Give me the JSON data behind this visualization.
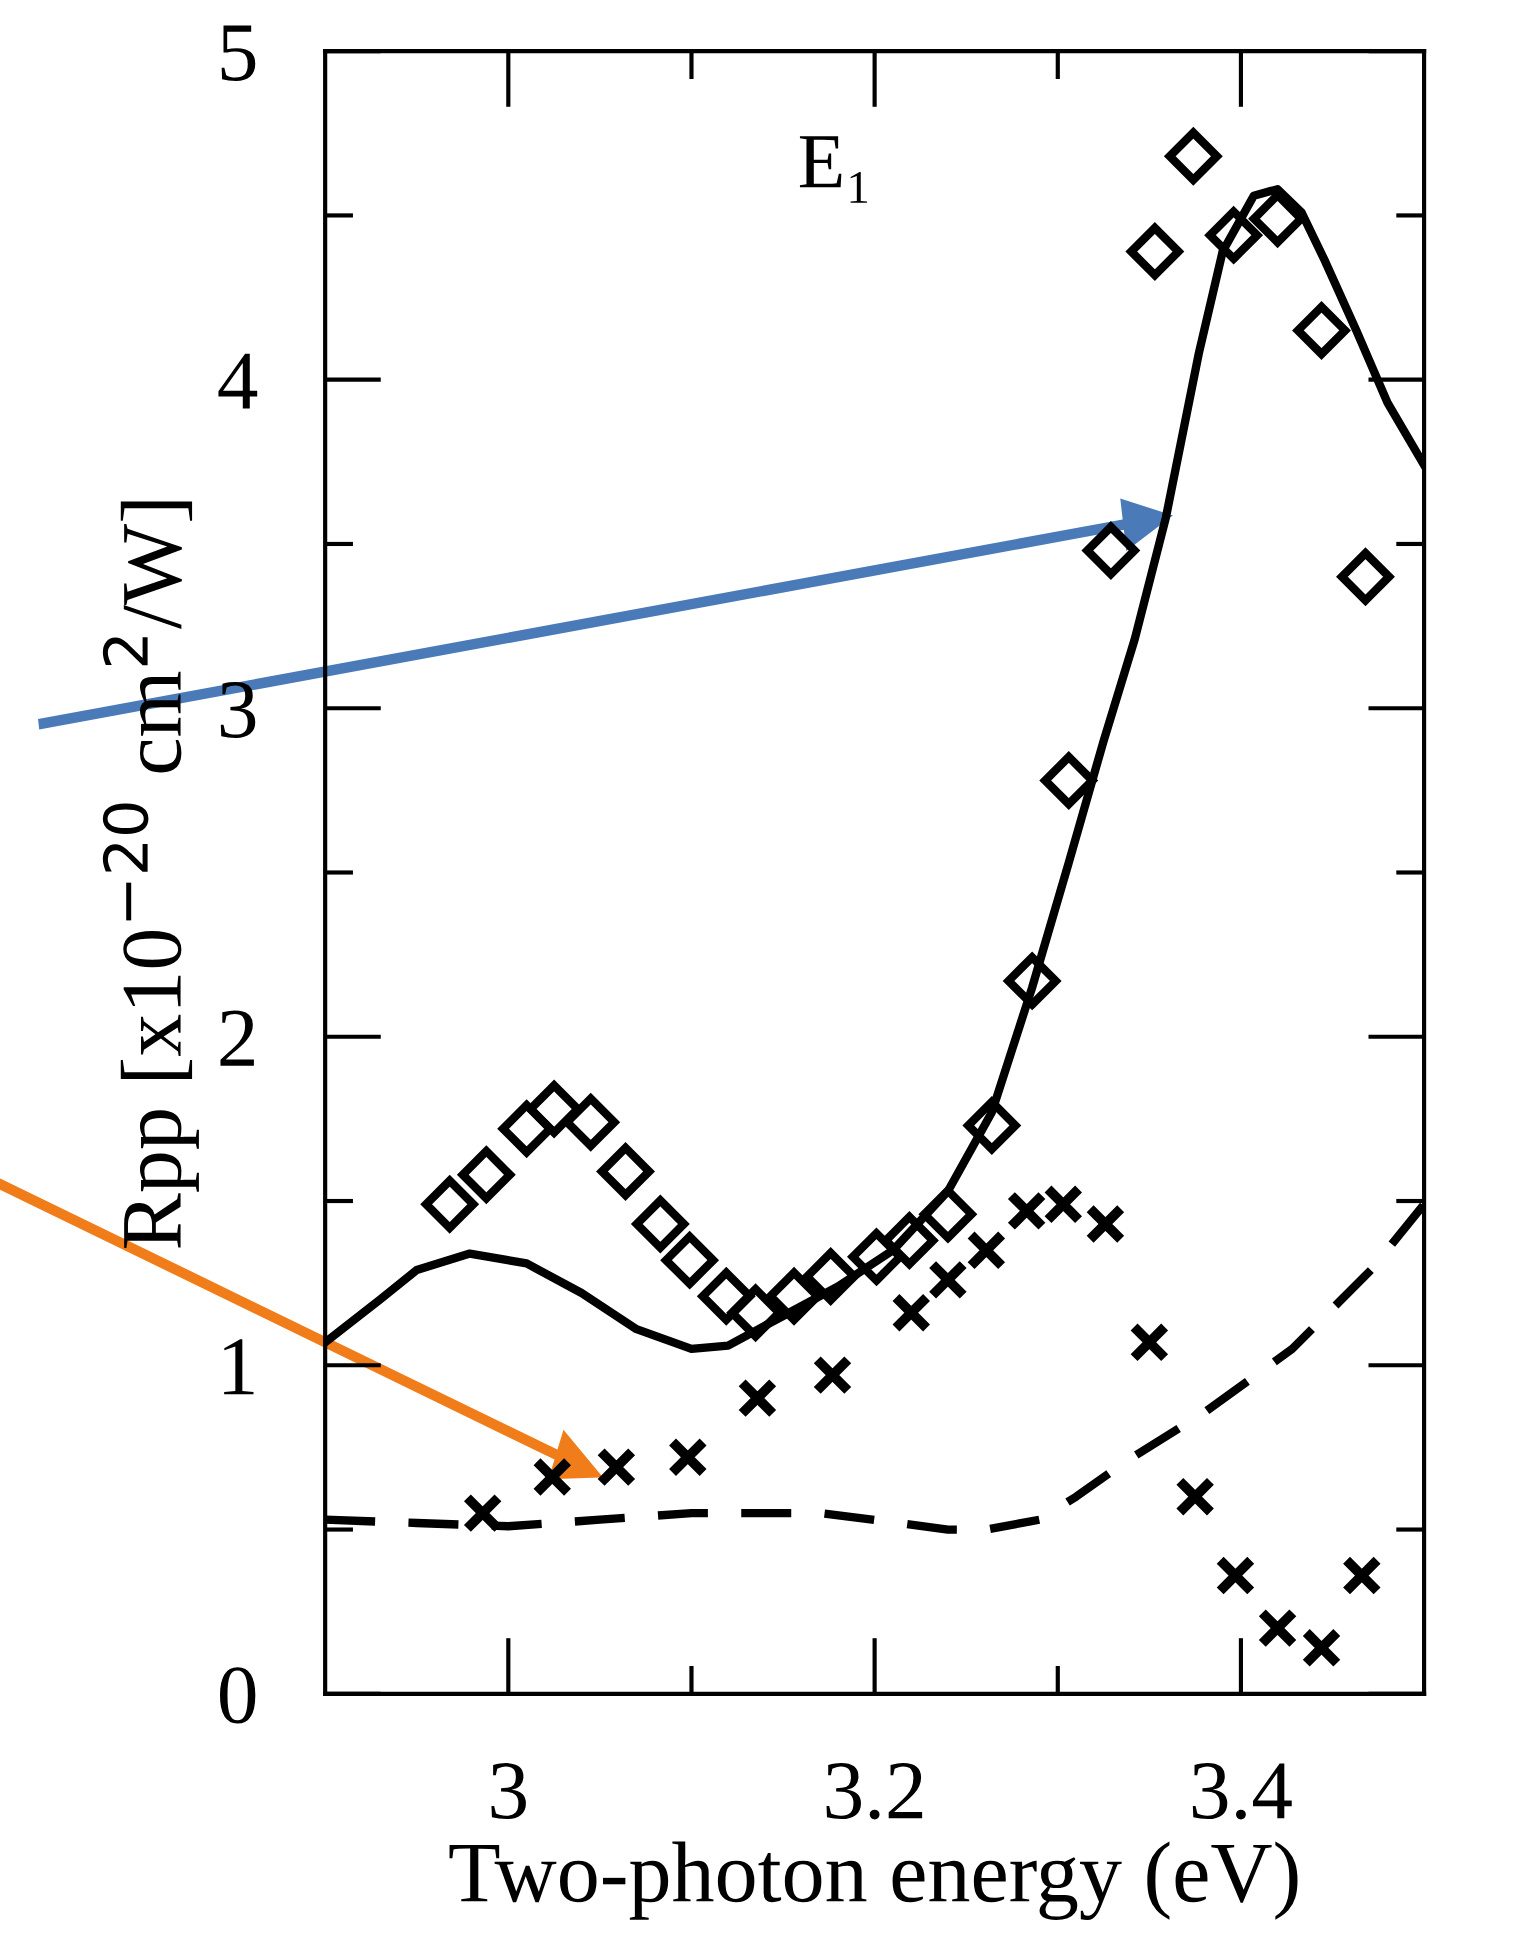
{
  "chart_data": {
    "type": "scatter",
    "xlabel": "Two-photon energy (eV)",
    "ylabel": "Rpp [x10$^{−20}$ cm$^{2}$/W]",
    "annotations": [
      "E₁"
    ],
    "xlim": [
      2.9,
      3.5
    ],
    "ylim": [
      0,
      5
    ],
    "xticks": [
      3,
      {
        "value": 3.1,
        "label": null
      },
      {
        "value": 3.2,
        "label": "3.2"
      },
      {
        "value": 3.3,
        "label": null
      },
      {
        "value": 3.4,
        "label": "3.4"
      }
    ],
    "yticks": [
      0,
      {
        "value": 0.5,
        "label": null
      },
      1,
      {
        "value": 1.5,
        "label": null
      },
      2,
      {
        "value": 2.5,
        "label": null
      },
      3,
      {
        "value": 3.5,
        "label": null
      },
      4,
      {
        "value": 4.5,
        "label": null
      },
      5
    ],
    "grid": false,
    "legend": false,
    "series": [
      {
        "marker": "diamond",
        "color": "#000000",
        "x": [
          2.968,
          2.988,
          3.01,
          3.025,
          3.045,
          3.064,
          3.083,
          3.099,
          3.119,
          3.135,
          3.156,
          3.176,
          3.201,
          3.219,
          3.24,
          3.264,
          3.286,
          3.306,
          3.329,
          3.353,
          3.374,
          3.396,
          3.42,
          3.444,
          3.468
        ],
        "values": [
          1.49,
          1.58,
          1.72,
          1.78,
          1.74,
          1.59,
          1.43,
          1.32,
          1.21,
          1.16,
          1.21,
          1.27,
          1.33,
          1.38,
          1.46,
          1.73,
          2.17,
          2.78,
          3.48,
          4.39,
          4.68,
          4.44,
          4.49,
          4.15,
          3.4
        ]
      },
      {
        "marker": "cross",
        "color": "#000000",
        "x": [
          2.986,
          3.024,
          3.059,
          3.098,
          3.136,
          3.177,
          3.22,
          3.24,
          3.261,
          3.283,
          3.303,
          3.326,
          3.35,
          3.375,
          3.397,
          3.42,
          3.444,
          3.466
        ],
        "values": [
          0.55,
          0.66,
          0.69,
          0.72,
          0.9,
          0.97,
          1.16,
          1.26,
          1.35,
          1.47,
          1.49,
          1.43,
          1.07,
          0.6,
          0.36,
          0.2,
          0.14,
          0.36
        ]
      },
      {
        "type": "line",
        "line_style": "solid",
        "color": "#000000",
        "x": [
          2.9,
          2.93,
          2.95,
          2.979,
          3.01,
          3.04,
          3.07,
          3.1,
          3.12,
          3.15,
          3.18,
          3.21,
          3.24,
          3.264,
          3.286,
          3.306,
          3.325,
          3.342,
          3.359,
          3.377,
          3.39,
          3.407,
          3.42,
          3.433,
          3.446,
          3.463,
          3.48,
          3.5
        ],
        "values": [
          1.07,
          1.2,
          1.29,
          1.34,
          1.31,
          1.22,
          1.11,
          1.05,
          1.06,
          1.15,
          1.24,
          1.35,
          1.53,
          1.77,
          2.15,
          2.53,
          2.9,
          3.21,
          3.58,
          4.08,
          4.39,
          4.56,
          4.58,
          4.51,
          4.36,
          4.15,
          3.93,
          3.74
        ]
      },
      {
        "type": "line",
        "line_style": "dashed",
        "color": "#000000",
        "x": [
          2.9,
          2.95,
          3.0,
          3.05,
          3.1,
          3.136,
          3.17,
          3.213,
          3.24,
          3.261,
          3.29,
          3.31,
          3.338,
          3.381,
          3.428,
          3.471,
          3.5
        ],
        "values": [
          0.53,
          0.52,
          0.51,
          0.53,
          0.55,
          0.55,
          0.55,
          0.52,
          0.5,
          0.5,
          0.53,
          0.6,
          0.71,
          0.86,
          1.05,
          1.29,
          1.49
        ]
      }
    ]
  }
}
